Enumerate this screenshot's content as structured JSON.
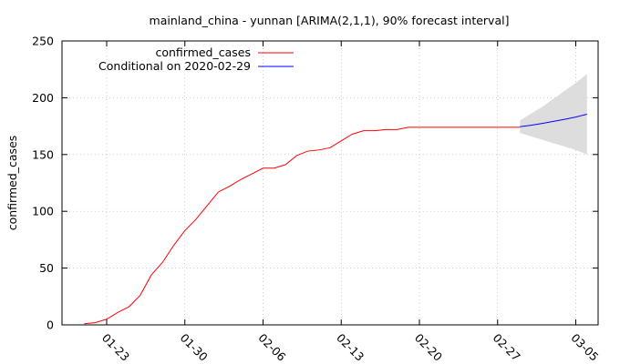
{
  "chart_data": {
    "type": "line",
    "title": "mainland_china - yunnan [ARIMA(2,1,1), 90% forecast interval]",
    "xlabel": "",
    "ylabel": "confirmed_cases",
    "ylim": [
      0,
      250
    ],
    "yticks": [
      "0",
      "50",
      "100",
      "150",
      "200",
      "250"
    ],
    "xticks": [
      "01-23",
      "01-30",
      "02-06",
      "02-13",
      "02-20",
      "02-27",
      "03-05"
    ],
    "xtick_dates": [
      "2020-01-23",
      "2020-01-30",
      "2020-02-06",
      "2020-02-13",
      "2020-02-20",
      "2020-02-27",
      "2020-03-05"
    ],
    "xlim": [
      "2020-01-19",
      "2020-03-07"
    ],
    "grid": true,
    "legend_position": "top-left",
    "series": [
      {
        "name": "confirmed_cases",
        "color": "#ff0000",
        "x": [
          "2020-01-21",
          "2020-01-22",
          "2020-01-23",
          "2020-01-24",
          "2020-01-25",
          "2020-01-26",
          "2020-01-27",
          "2020-01-28",
          "2020-01-29",
          "2020-01-30",
          "2020-01-31",
          "2020-02-01",
          "2020-02-02",
          "2020-02-03",
          "2020-02-04",
          "2020-02-05",
          "2020-02-06",
          "2020-02-07",
          "2020-02-08",
          "2020-02-09",
          "2020-02-10",
          "2020-02-11",
          "2020-02-12",
          "2020-02-13",
          "2020-02-14",
          "2020-02-15",
          "2020-02-16",
          "2020-02-17",
          "2020-02-18",
          "2020-02-19",
          "2020-02-20",
          "2020-02-21",
          "2020-02-22",
          "2020-02-23",
          "2020-02-24",
          "2020-02-25",
          "2020-02-26",
          "2020-02-27",
          "2020-02-28",
          "2020-02-29"
        ],
        "values": [
          1,
          2,
          5,
          11,
          16,
          26,
          44,
          55,
          70,
          83,
          93,
          105,
          117,
          122,
          128,
          133,
          138,
          138,
          141,
          149,
          153,
          154,
          156,
          162,
          168,
          171,
          171,
          172,
          172,
          174,
          174,
          174,
          174,
          174,
          174,
          174,
          174,
          174,
          174,
          174
        ]
      },
      {
        "name": "Conditional on 2020-02-29",
        "color": "#0000ff",
        "x": [
          "2020-02-29",
          "2020-03-01",
          "2020-03-02",
          "2020-03-03",
          "2020-03-04",
          "2020-03-05",
          "2020-03-06"
        ],
        "values": [
          174.5,
          175.8,
          177.4,
          179.2,
          181.0,
          183.0,
          185.5
        ]
      }
    ],
    "forecast_interval": {
      "color": "#dddddd",
      "x": [
        "2020-02-29",
        "2020-03-01",
        "2020-03-02",
        "2020-03-03",
        "2020-03-04",
        "2020-03-05",
        "2020-03-06"
      ],
      "lower": [
        169,
        166,
        163,
        160,
        157,
        154,
        150
      ],
      "upper": [
        180,
        186,
        192,
        199,
        206,
        213,
        221
      ]
    }
  }
}
